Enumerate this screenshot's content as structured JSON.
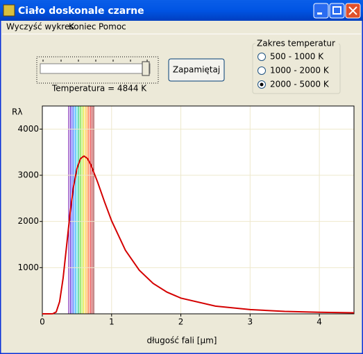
{
  "window": {
    "title": "Ciało doskonale czarne"
  },
  "menu": [
    "Wyczyść wykres",
    "Koniec",
    "Pomoc"
  ],
  "slider": {
    "label": "Temperatura =  4844 K"
  },
  "button": "Zapamiętaj",
  "range_group": {
    "title": "Zakres temperatur",
    "options": [
      "500 - 1000 K",
      "1000 - 2000 K",
      "2000 - 5000 K"
    ],
    "selected": 2
  },
  "chart_data": {
    "type": "line",
    "y_label": "Rλ",
    "x_label": "długość fali [μm]",
    "x": [
      0,
      0.1,
      0.15,
      0.2,
      0.25,
      0.3,
      0.35,
      0.4,
      0.45,
      0.5,
      0.55,
      0.6,
      0.65,
      0.7,
      0.8,
      0.9,
      1.0,
      1.2,
      1.4,
      1.6,
      1.8,
      2.0,
      2.5,
      3.0,
      3.5,
      4.0,
      4.5
    ],
    "series": [
      {
        "color": "#d40000",
        "values": [
          0,
          0,
          1,
          41,
          264,
          769,
          1464,
          2171,
          2751,
          3147,
          3359,
          3417,
          3364,
          3231,
          2846,
          2416,
          2015,
          1376,
          944,
          658,
          469,
          341,
          167,
          91,
          53,
          33,
          22
        ]
      }
    ],
    "xlim": [
      0,
      4.5
    ],
    "ylim": [
      0,
      4500
    ],
    "xticks": [
      0,
      1,
      2,
      3,
      4
    ],
    "yticks": [
      1000,
      2000,
      3000,
      4000
    ],
    "grid": true
  }
}
